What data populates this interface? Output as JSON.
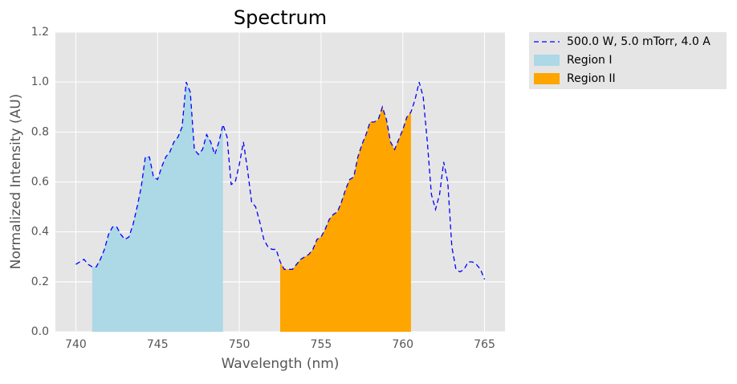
{
  "chart_data": {
    "type": "line",
    "title": "Spectrum",
    "x_label": "Wavelength (nm)",
    "y_label": "Normalized Intensity (AU)",
    "x": [
      740,
      740.25,
      740.5,
      740.75,
      741,
      741.25,
      741.5,
      741.75,
      742,
      742.25,
      742.5,
      742.75,
      743,
      743.25,
      743.5,
      743.75,
      744,
      744.25,
      744.5,
      744.75,
      745,
      745.25,
      745.5,
      745.75,
      746,
      746.25,
      746.5,
      746.75,
      747,
      747.25,
      747.5,
      747.75,
      748,
      748.25,
      748.5,
      748.75,
      749,
      749.25,
      749.5,
      749.75,
      750,
      750.25,
      750.5,
      750.75,
      751,
      751.25,
      751.5,
      751.75,
      752,
      752.25,
      752.5,
      752.75,
      753,
      753.25,
      753.5,
      753.75,
      754,
      754.25,
      754.5,
      754.75,
      755,
      755.25,
      755.5,
      755.75,
      756,
      756.25,
      756.5,
      756.75,
      757,
      757.25,
      757.5,
      757.75,
      758,
      758.25,
      758.5,
      758.75,
      759,
      759.25,
      759.5,
      759.75,
      760,
      760.25,
      760.5,
      760.75,
      761,
      761.25,
      761.5,
      761.75,
      762,
      762.25,
      762.5,
      762.75,
      763,
      763.25,
      763.5,
      763.75,
      764,
      764.25,
      764.5,
      764.75,
      765
    ],
    "series": [
      {
        "name": "500.0 W, 5.0 mTorr, 4.0 A",
        "color": "#0000ff",
        "values": [
          0.27,
          0.28,
          0.29,
          0.27,
          0.26,
          0.26,
          0.29,
          0.33,
          0.39,
          0.42,
          0.42,
          0.39,
          0.37,
          0.38,
          0.43,
          0.5,
          0.58,
          0.7,
          0.7,
          0.62,
          0.61,
          0.66,
          0.7,
          0.72,
          0.76,
          0.78,
          0.82,
          1.0,
          0.96,
          0.73,
          0.71,
          0.73,
          0.79,
          0.76,
          0.71,
          0.76,
          0.83,
          0.78,
          0.59,
          0.6,
          0.67,
          0.76,
          0.65,
          0.52,
          0.5,
          0.44,
          0.37,
          0.34,
          0.33,
          0.33,
          0.28,
          0.25,
          0.25,
          0.25,
          0.27,
          0.29,
          0.3,
          0.31,
          0.33,
          0.37,
          0.38,
          0.41,
          0.45,
          0.47,
          0.48,
          0.52,
          0.57,
          0.61,
          0.62,
          0.7,
          0.75,
          0.79,
          0.84,
          0.84,
          0.85,
          0.9,
          0.85,
          0.76,
          0.73,
          0.77,
          0.81,
          0.86,
          0.88,
          0.93,
          1.0,
          0.94,
          0.76,
          0.55,
          0.49,
          0.55,
          0.68,
          0.6,
          0.34,
          0.25,
          0.24,
          0.25,
          0.28,
          0.28,
          0.27,
          0.25,
          0.21
        ]
      }
    ],
    "regions": [
      {
        "name": "Region I",
        "color": "#add8e6",
        "xmin": 741,
        "xmax": 749
      },
      {
        "name": "Region II",
        "color": "#ffa500",
        "xmin": 752.5,
        "xmax": 760.5
      }
    ],
    "xlim": [
      738.75,
      766.25
    ],
    "ylim": [
      0,
      1.2
    ],
    "xticks": [
      740,
      745,
      750,
      755,
      760,
      765
    ],
    "yticks": [
      {
        "value": 0,
        "label": "0.0"
      },
      0.2,
      0.4,
      0.6,
      0.8,
      {
        "value": 1,
        "label": "1.0"
      },
      0.2,
      1.2
    ],
    "grid": true
  }
}
